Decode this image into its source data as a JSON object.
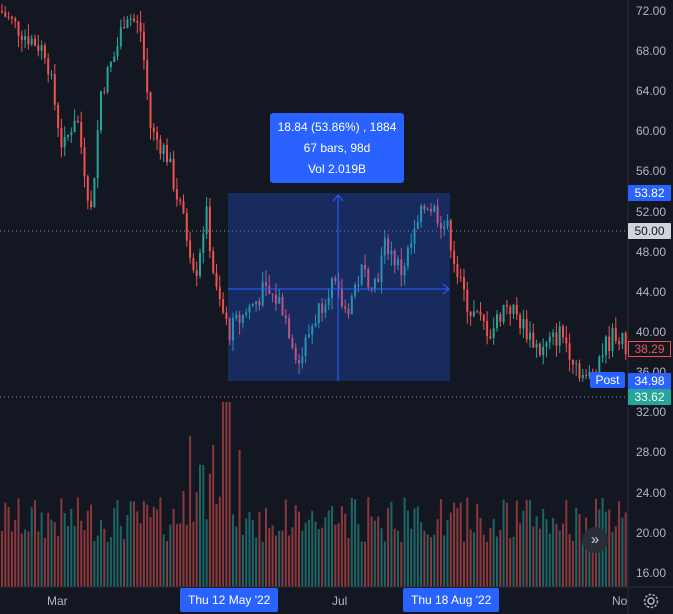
{
  "price_axis": {
    "labels": [
      "72.00",
      "68.00",
      "64.00",
      "60.00",
      "56.00",
      "52.00",
      "48.00",
      "44.00",
      "40.00",
      "36.00",
      "32.00",
      "28.00",
      "24.00",
      "20.00",
      "16.00"
    ]
  },
  "price_badges": {
    "range_high": "53.82",
    "crosshair": "50.00",
    "last": "38.29",
    "post": "34.98",
    "range_low": "33.62"
  },
  "time_axis": {
    "labels": [
      "Mar",
      "Jul",
      "No"
    ],
    "highlight_start": "Thu 12 May '22",
    "highlight_end": "Thu 18 Aug '22"
  },
  "measure": {
    "line1": "18.84 (53.86%) , 1884",
    "line2": "67 bars, 98d",
    "line3": "Vol 2.019B"
  },
  "post_label": "Post",
  "controls": {
    "scroll_icon": "double-chevron-right-icon",
    "settings_icon": "gear-icon"
  },
  "colors": {
    "background": "#131722",
    "up": "#26a69a",
    "down": "#ef5350",
    "accent": "#2962ff",
    "crosshair_badge": "#d1d4dc"
  }
}
